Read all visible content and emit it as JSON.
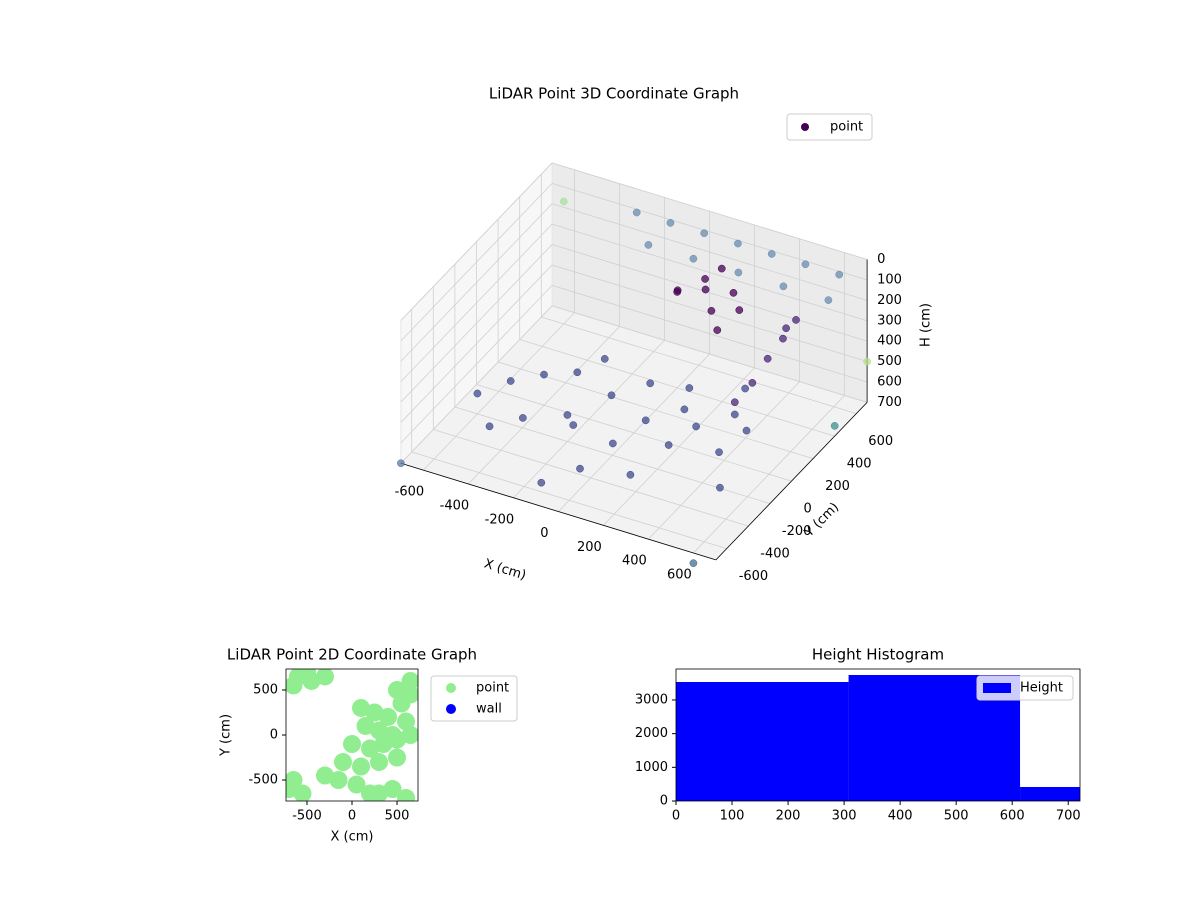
{
  "chart_data": [
    {
      "type": "scatter3d",
      "title": "LiDAR Point 3D Coordinate Graph",
      "xlabel": "X (cm)",
      "ylabel": "Y (cm)",
      "zlabel": "H (cm)",
      "xlim": [
        -700,
        700
      ],
      "ylim": [
        -700,
        700
      ],
      "zlim": [
        0,
        700
      ],
      "z_inverted": true,
      "xticks": [
        -600,
        -400,
        -200,
        0,
        200,
        400,
        600
      ],
      "yticks": [
        -600,
        -400,
        -200,
        0,
        200,
        400,
        600
      ],
      "zticks": [
        0,
        100,
        200,
        300,
        400,
        500,
        600,
        700
      ],
      "legend": "upper right",
      "series": [
        {
          "name": "point",
          "color": "#440154",
          "x": [
            -500,
            -400,
            -300,
            -200,
            -100,
            0,
            100,
            200,
            300,
            400,
            500,
            -350,
            -150,
            50,
            250,
            450,
            -250,
            150,
            350,
            -450,
            0,
            200,
            -600,
            550,
            -100,
            50,
            150,
            250,
            100,
            200,
            300,
            0,
            150,
            250,
            450,
            470,
            480,
            430,
            400,
            460,
            -300,
            -150,
            0,
            150,
            300,
            450,
            600,
            -200,
            0,
            200,
            400,
            600,
            -700,
            600,
            -600,
            700,
            700
          ],
          "y": [
            -100,
            0,
            100,
            -200,
            0,
            150,
            -100,
            50,
            -50,
            100,
            0,
            -300,
            -250,
            -300,
            -200,
            -150,
            250,
            200,
            300,
            -400,
            -500,
            -450,
            -200,
            -350,
            -650,
            300,
            350,
            400,
            450,
            300,
            350,
            400,
            500,
            250,
            300,
            400,
            500,
            200,
            100,
            450,
            650,
            650,
            650,
            650,
            650,
            650,
            650,
            550,
            550,
            550,
            550,
            550,
            -700,
            -700,
            600,
            700,
            400
          ],
          "h": [
            560,
            550,
            560,
            570,
            550,
            540,
            550,
            545,
            540,
            530,
            520,
            580,
            575,
            570,
            565,
            560,
            560,
            540,
            530,
            600,
            600,
            590,
            600,
            590,
            620,
            150,
            140,
            150,
            160,
            200,
            190,
            230,
            120,
            250,
            350,
            300,
            260,
            420,
            470,
            280,
            80,
            80,
            80,
            80,
            80,
            80,
            80,
            150,
            150,
            150,
            150,
            150,
            700,
            750,
            100,
            500,
            650
          ],
          "colors": [
            "#3e4a89",
            "#3e4a89",
            "#3e4a89",
            "#3e4a89",
            "#3e4a89",
            "#3e4a89",
            "#3e4a89",
            "#3e4a89",
            "#3e4a89",
            "#3e4a89",
            "#3e4a89",
            "#3e4a89",
            "#3e4a89",
            "#3e4a89",
            "#3e4a89",
            "#3e4a89",
            "#3e4a89",
            "#3e4a89",
            "#3e4a89",
            "#3e4a89",
            "#3e4a89",
            "#3e4a89",
            "#3e4a89",
            "#3e4a89",
            "#3e4a89",
            "#440154",
            "#440154",
            "#440154",
            "#440154",
            "#440154",
            "#440154",
            "#440154",
            "#440154",
            "#440154",
            "#482677",
            "#482677",
            "#482677",
            "#482677",
            "#482677",
            "#482677",
            "#6a8caf",
            "#6a8caf",
            "#6a8caf",
            "#6a8caf",
            "#6a8caf",
            "#6a8caf",
            "#6a8caf",
            "#6a8caf",
            "#6a8caf",
            "#6a8caf",
            "#6a8caf",
            "#6a8caf",
            "#5b7aa0",
            "#416d8d",
            "#a8e0a0",
            "#b5de8f",
            "#3f8f8b"
          ]
        }
      ]
    },
    {
      "type": "scatter",
      "title": "LiDAR Point 2D Coordinate Graph",
      "xlabel": "X (cm)",
      "ylabel": "Y (cm)",
      "xlim": [
        -733,
        733
      ],
      "ylim": [
        -733,
        733
      ],
      "xticks": [
        -500,
        0,
        500
      ],
      "yticks": [
        -500,
        0,
        500
      ],
      "legend": "outside right",
      "series": [
        {
          "name": "point",
          "color": "#90ee90",
          "x": [
            -600,
            -450,
            -300,
            -650,
            -500,
            100,
            250,
            400,
            550,
            650,
            150,
            300,
            450,
            600,
            0,
            200,
            350,
            500,
            650,
            -100,
            100,
            300,
            500,
            -300,
            -150,
            50,
            -650,
            -550,
            -700,
            300,
            450,
            600,
            650,
            500,
            200
          ],
          "y": [
            650,
            600,
            650,
            550,
            700,
            300,
            250,
            200,
            350,
            450,
            100,
            50,
            0,
            150,
            -100,
            -150,
            -100,
            -50,
            0,
            -300,
            -350,
            -300,
            -250,
            -450,
            -500,
            -550,
            -500,
            -650,
            -600,
            -650,
            -600,
            -700,
            600,
            500,
            -650
          ]
        },
        {
          "name": "wall",
          "color": "#0000ff",
          "x": [],
          "y": []
        }
      ]
    },
    {
      "type": "histogram",
      "title": "Height Histogram",
      "xlim": [
        0,
        721
      ],
      "ylim": [
        0,
        3920
      ],
      "xticks": [
        0,
        100,
        200,
        300,
        400,
        500,
        600,
        700
      ],
      "yticks": [
        0,
        1000,
        2000,
        3000
      ],
      "legend": "upper right",
      "bins": [
        0,
        308,
        614,
        721
      ],
      "series": [
        {
          "name": "Height",
          "color": "#0000ff",
          "values": [
            3534,
            3742,
            416
          ]
        }
      ]
    }
  ]
}
